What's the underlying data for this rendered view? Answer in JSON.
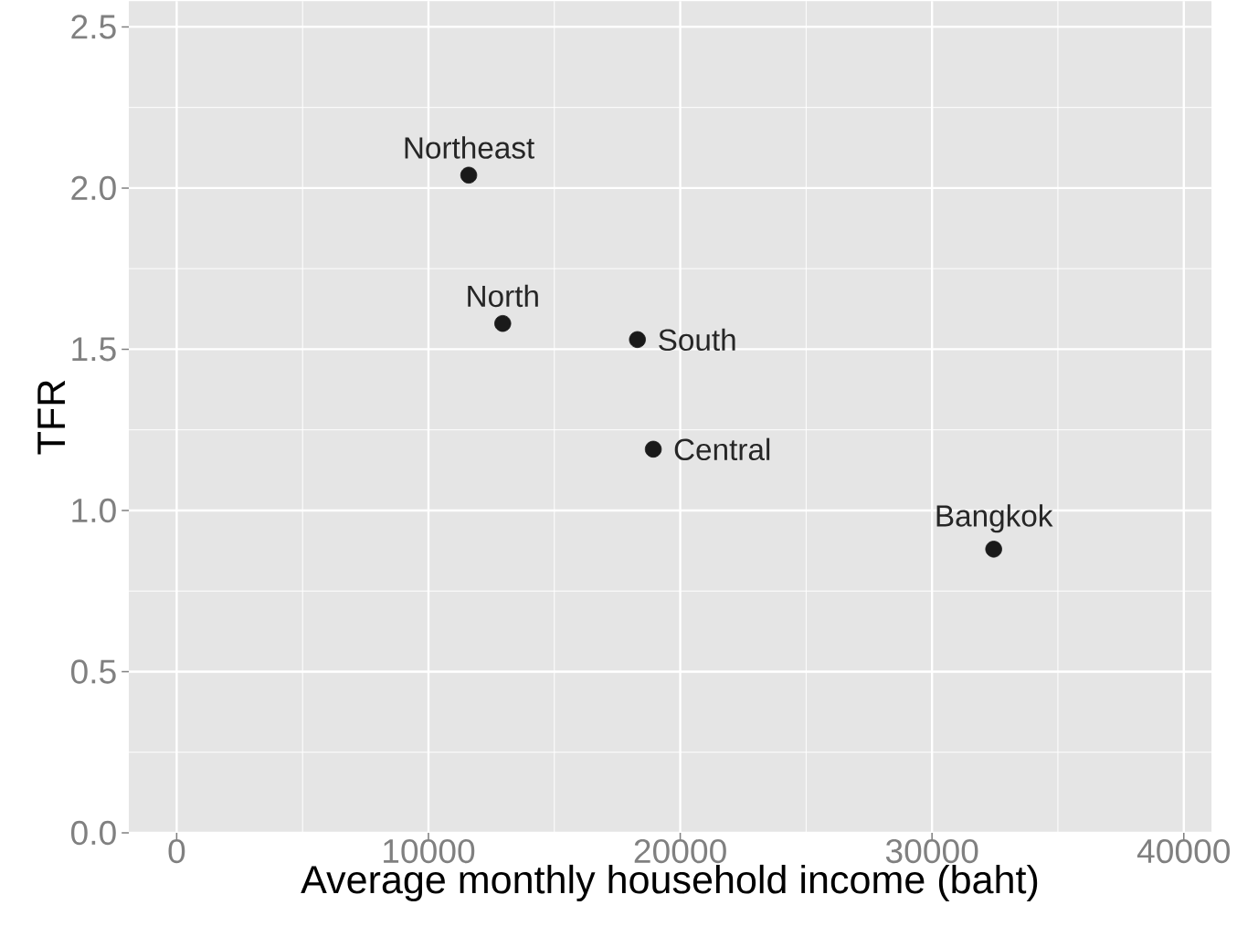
{
  "chart_data": {
    "type": "scatter",
    "xlabel": "Average monthly household income (baht)",
    "ylabel": "TFR",
    "x": [
      11600,
      12950,
      18300,
      18930,
      32450
    ],
    "values": [
      2.04,
      1.58,
      1.53,
      1.19,
      0.88
    ],
    "color": "#1a1a1a",
    "marker": "circle",
    "grid": true,
    "xlim": [
      -1900,
      41100
    ],
    "ylim": [
      0,
      2.58
    ],
    "xticks": [
      0,
      10000,
      20000,
      30000,
      40000
    ],
    "yticks": [
      {
        "value": 0,
        "label": "0.0"
      },
      {
        "value": 0.5,
        "label": "0.5"
      },
      {
        "value": 1,
        "label": "1.0"
      },
      {
        "value": 1.5,
        "label": "1.5"
      },
      {
        "value": 2,
        "label": "2.0"
      },
      {
        "value": 2.5,
        "label": "2.5"
      }
    ],
    "annotations": [
      {
        "text": "Northeast",
        "x": 11600,
        "y": 2.04
      },
      {
        "text": "North",
        "x": 12950,
        "y": 1.58
      },
      {
        "text": "South",
        "x": 18300,
        "y": 1.53
      },
      {
        "text": "Central",
        "x": 18930,
        "y": 1.19
      },
      {
        "text": "Bangkok",
        "x": 32450,
        "y": 0.88
      }
    ]
  }
}
